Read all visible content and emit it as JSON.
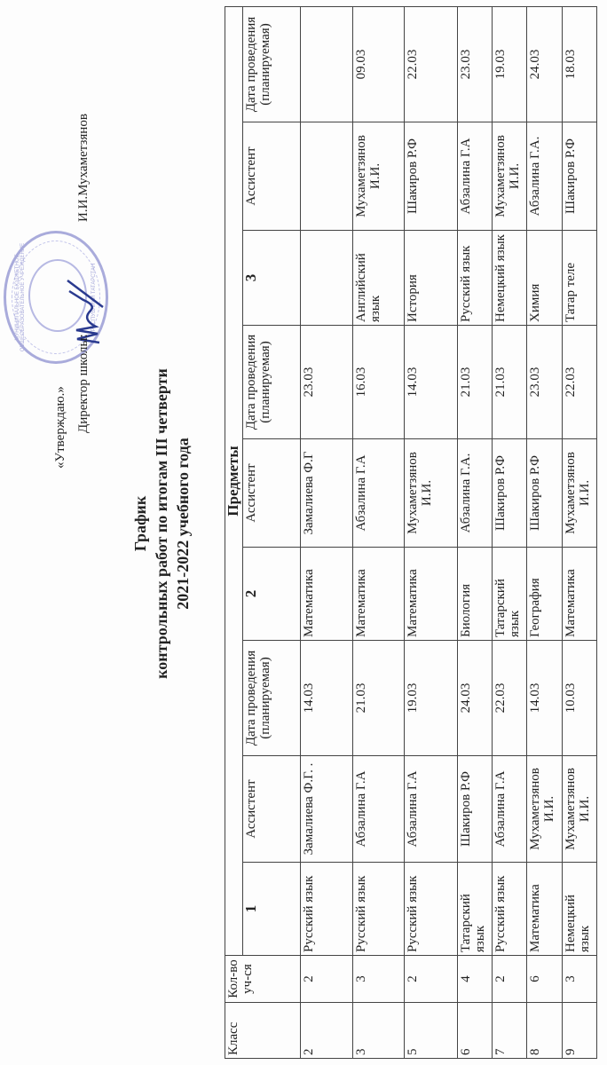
{
  "approval": {
    "line1": "«Утверждаю.»",
    "line2": "Директор школы:",
    "director": "И.И.Мухаметзянов",
    "stamp_text_top": "МУНИЦИПАЛЬНОЕ БЮДЖЕТНОЕ ОБЩЕОБРАЗОВАТЕЛЬНОЕ УЧРЕЖДЕНИЕ",
    "stamp_text_bottom": "РЕСПУБЛИКИ ТАТАРСТАН"
  },
  "title": {
    "line1": "График",
    "line2": "контрольных работ по итогам III четверти",
    "line3": "2021-2022 учебного года"
  },
  "table": {
    "headers": {
      "class": "Класс",
      "count": "Кол-во уч-ся",
      "subjects": "Предметы",
      "n1": "1",
      "n2": "2",
      "n3": "3",
      "assistant": "Ассистент",
      "date": "Дата проведения (планируемая)"
    },
    "rows": [
      [
        "2",
        "2",
        "Русский язык",
        "Замалиева Ф.Г. .",
        "14.03",
        "Математика",
        "Замалиева Ф.Г",
        "23.03",
        "",
        "",
        ""
      ],
      [
        "3",
        "3",
        "Русский язык",
        "Абзалина Г.А",
        "21.03",
        "Математика",
        "Абзалина Г.А",
        "16.03",
        "Английский язык",
        "Мухаметзянов И.И.",
        "09.03"
      ],
      [
        "5",
        "2",
        "Русский язык",
        "Абзалина Г.А",
        "19.03",
        "Математика",
        "Мухаметзянов И.И.",
        "14.03",
        "История",
        "Шакиров Р.Ф",
        "22.03"
      ],
      [
        "6",
        "4",
        "Татарский язык",
        "Шакиров Р.Ф",
        "24.03",
        "Биология",
        "Абзалина Г.А.",
        "21.03",
        "Русский язык",
        "Абзалина Г.А",
        "23.03"
      ],
      [
        "7",
        "2",
        "Русский язык",
        "Абзалина Г.А",
        "22.03",
        "Татарский язык",
        "Шакиров Р.Ф",
        "21.03",
        "Немецкий язык",
        "Мухаметзянов И.И.",
        "19.03"
      ],
      [
        "8",
        "6",
        "Математика",
        "Мухаметзянов И.И.",
        "14.03",
        "География",
        "Шакиров Р.Ф",
        "23.03",
        "Химия",
        "Абзалина Г.А.",
        "24.03"
      ],
      [
        "9",
        "3",
        "Немецкий язык",
        "Мухаметзянов И.И.",
        "10.03",
        "Математика",
        "Мухаметзянов И.И.",
        "22.03",
        "Татар теле",
        "Шакиров Р.Ф",
        "18.03"
      ]
    ]
  },
  "colors": {
    "stamp": "#a9abdb",
    "signature": "#2a3a8f"
  }
}
